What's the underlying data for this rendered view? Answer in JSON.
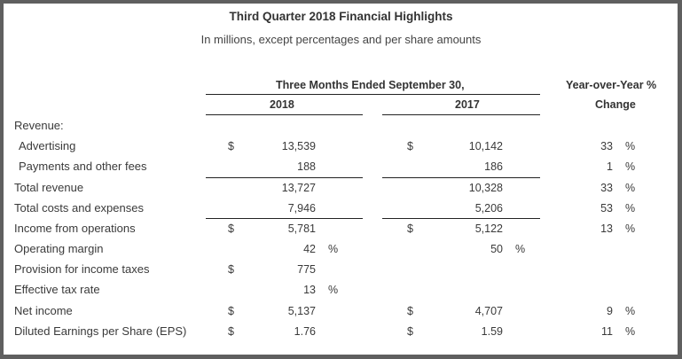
{
  "title": "Third Quarter 2018 Financial Highlights",
  "subtitle": "In millions, except percentages and per share amounts",
  "headers": {
    "period": "Three Months Ended September 30,",
    "col_2018": "2018",
    "col_2017": "2017",
    "yoy_line1": "Year-over-Year %",
    "yoy_line2": "Change"
  },
  "currency_symbol": "$",
  "percent_symbol": "%",
  "rows": [
    {
      "label": "Revenue:",
      "indent": false,
      "d2018": "",
      "v2018": "",
      "p2018": "",
      "d2017": "",
      "v2017": "",
      "p2017": "",
      "yoy": "",
      "yoy_pct": ""
    },
    {
      "label": "Advertising",
      "indent": true,
      "d2018": "$",
      "v2018": "13,539",
      "p2018": "",
      "d2017": "$",
      "v2017": "10,142",
      "p2017": "",
      "yoy": "33",
      "yoy_pct": "%"
    },
    {
      "label": "Payments and other fees",
      "indent": true,
      "d2018": "",
      "v2018": "188",
      "p2018": "",
      "d2017": "",
      "v2017": "186",
      "p2017": "",
      "yoy": "1",
      "yoy_pct": "%"
    },
    {
      "label": "Total revenue",
      "indent": false,
      "d2018": "",
      "v2018": "13,727",
      "p2018": "",
      "d2017": "",
      "v2017": "10,328",
      "p2017": "",
      "yoy": "33",
      "yoy_pct": "%"
    },
    {
      "label": "Total costs and expenses",
      "indent": false,
      "d2018": "",
      "v2018": "7,946",
      "p2018": "",
      "d2017": "",
      "v2017": "5,206",
      "p2017": "",
      "yoy": "53",
      "yoy_pct": "%"
    },
    {
      "label": "Income from operations",
      "indent": false,
      "d2018": "$",
      "v2018": "5,781",
      "p2018": "",
      "d2017": "$",
      "v2017": "5,122",
      "p2017": "",
      "yoy": "13",
      "yoy_pct": "%"
    },
    {
      "label": "Operating margin",
      "indent": false,
      "d2018": "",
      "v2018": "42",
      "p2018": "%",
      "d2017": "",
      "v2017": "50",
      "p2017": "%",
      "yoy": "",
      "yoy_pct": ""
    },
    {
      "label": "Provision for income taxes",
      "indent": false,
      "d2018": "$",
      "v2018": "775",
      "p2018": "",
      "d2017": "",
      "v2017": "",
      "p2017": "",
      "yoy": "",
      "yoy_pct": ""
    },
    {
      "label": "Effective tax rate",
      "indent": false,
      "d2018": "",
      "v2018": "13",
      "p2018": "%",
      "d2017": "",
      "v2017": "",
      "p2017": "",
      "yoy": "",
      "yoy_pct": ""
    },
    {
      "label": "Net income",
      "indent": false,
      "d2018": "$",
      "v2018": "5,137",
      "p2018": "",
      "d2017": "$",
      "v2017": "4,707",
      "p2017": "",
      "yoy": "9",
      "yoy_pct": "%"
    },
    {
      "label": "Diluted Earnings per Share (EPS)",
      "indent": false,
      "d2018": "$",
      "v2018": "1.76",
      "p2018": "",
      "d2017": "$",
      "v2017": "1.59",
      "p2017": "",
      "yoy": "11",
      "yoy_pct": "%"
    }
  ]
}
